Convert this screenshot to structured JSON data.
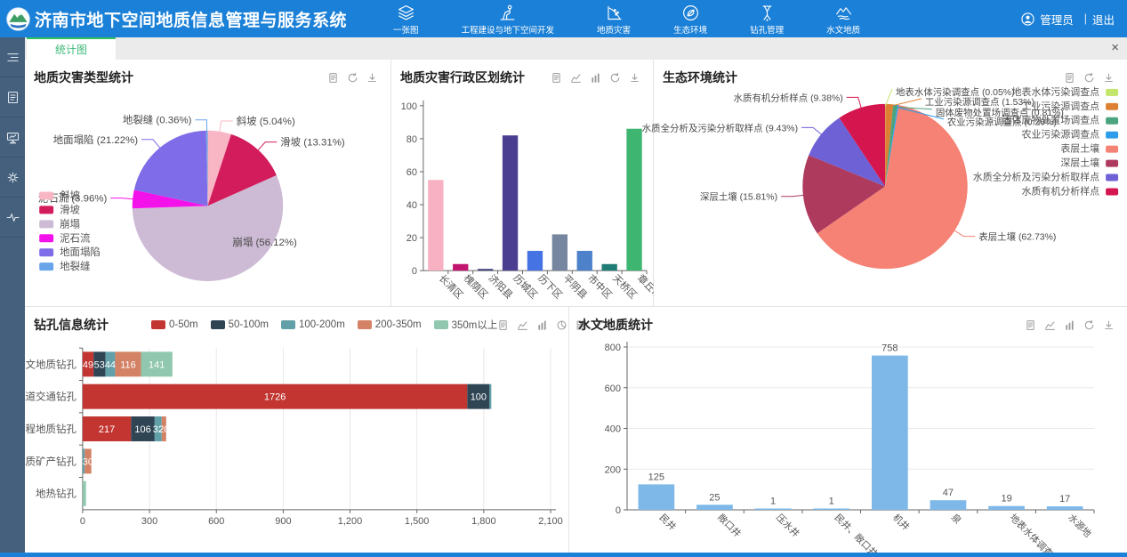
{
  "header": {
    "title": "济南市地下空间地质信息管理与服务系统",
    "nav": [
      {
        "label": "一张图",
        "icon": "layers-icon"
      },
      {
        "label": "工程建设与地下空间开发",
        "icon": "construction-icon"
      },
      {
        "label": "地质灾害",
        "icon": "landslide-icon"
      },
      {
        "label": "生态环境",
        "icon": "ecology-icon"
      },
      {
        "label": "钻孔管理",
        "icon": "drill-icon"
      },
      {
        "label": "水文地质",
        "icon": "hydrogeology-icon"
      }
    ],
    "user": {
      "name": "管理员",
      "divider": "|",
      "logout": "退出"
    }
  },
  "sidebar": {
    "items": [
      {
        "icon": "menu-icon"
      },
      {
        "icon": "document-panel-icon"
      },
      {
        "icon": "presentation-icon"
      },
      {
        "icon": "gear-icon"
      },
      {
        "icon": "activity-icon"
      }
    ]
  },
  "tabs": {
    "active": "统计图",
    "close_label": "×"
  },
  "chart_data": [
    {
      "id": "disaster-type",
      "type": "pie",
      "title": "地质灾害类型统计",
      "labels": [
        "斜坡",
        "滑坡",
        "崩塌",
        "泥石流",
        "地面塌陷",
        "地裂缝"
      ],
      "values": [
        5.04,
        13.31,
        56.12,
        3.96,
        21.22,
        0.36
      ],
      "unit": "%",
      "colors": [
        "#f8b6c5",
        "#d31c5c",
        "#cdbad4",
        "#f312e9",
        "#7e6ce8",
        "#68a4ea"
      ],
      "legend_position": "left",
      "toolbar": [
        "document-icon",
        "refresh-icon",
        "download-icon"
      ]
    },
    {
      "id": "disaster-region",
      "type": "bar",
      "title": "地质灾害行政区划统计",
      "categories": [
        "长清区",
        "槐荫区",
        "济阳县",
        "历城区",
        "历下区",
        "平阴县",
        "市中区",
        "天桥区",
        "章丘市"
      ],
      "values": [
        55,
        4,
        1,
        82,
        12,
        22,
        12,
        4,
        86
      ],
      "ylim": [
        0,
        100
      ],
      "yticks": [
        0,
        20,
        40,
        60,
        80,
        100
      ],
      "colors": [
        "#f8b1c3",
        "#c2156f",
        "#3c3f78",
        "#4a3e90",
        "#4673e3",
        "#76869e",
        "#4d82cb",
        "#207d76",
        "#3eb571"
      ],
      "toolbar": [
        "document-icon",
        "line-chart-icon",
        "bar-chart-icon",
        "refresh-icon",
        "download-icon"
      ]
    },
    {
      "id": "ecology",
      "type": "pie",
      "title": "生态环境统计",
      "labels": [
        "地表水体污染调查点",
        "工业污染源调查点",
        "固体废物处置场调查点",
        "农业污染源调查点",
        "表层土壤",
        "深层土壤",
        "水质全分析及污染分析取样点",
        "水质有机分析样点"
      ],
      "values": [
        0.05,
        1.53,
        0.81,
        0.26,
        62.73,
        15.81,
        9.43,
        9.38
      ],
      "unit": "%",
      "colors": [
        "#c3e56a",
        "#dd8033",
        "#4aa47e",
        "#2d9ceb",
        "#f58274",
        "#ae3a5e",
        "#6e61d5",
        "#d5164e"
      ],
      "legend_position": "right",
      "toolbar": [
        "document-icon",
        "refresh-icon",
        "download-icon"
      ]
    },
    {
      "id": "borehole",
      "type": "hbar-stacked",
      "title": "钻孔信息统计",
      "categories": [
        "水文地质钻孔",
        "轨道交通钻孔",
        "工程地质钻孔",
        "地质矿产钻孔",
        "地热钻孔"
      ],
      "series": [
        {
          "name": "0-50m",
          "color": "#c23531",
          "values": [
            49,
            1726,
            217,
            0,
            0
          ]
        },
        {
          "name": "50-100m",
          "color": "#2f4554",
          "values": [
            53,
            100,
            106,
            0,
            0
          ]
        },
        {
          "name": "100-200m",
          "color": "#61a0a8",
          "values": [
            44,
            8,
            32,
            9,
            0
          ]
        },
        {
          "name": "200-350m",
          "color": "#d48265",
          "values": [
            116,
            0,
            20,
            30,
            0
          ]
        },
        {
          "name": "350m以上",
          "color": "#91c7ae",
          "values": [
            141,
            0,
            0,
            0,
            15
          ]
        }
      ],
      "xlim": [
        0,
        2100
      ],
      "xticks": [
        0,
        300,
        600,
        900,
        1200,
        1500,
        1800,
        2100
      ],
      "toolbar": [
        "document-icon",
        "line-chart-icon",
        "bar-chart-icon",
        "pie-chart-icon",
        "grid-view-icon",
        "refresh-icon",
        "download-icon"
      ]
    },
    {
      "id": "hydrogeology",
      "type": "bar",
      "title": "水文地质统计",
      "categories": [
        "民井",
        "敞口井",
        "压水井",
        "民井、敞口井",
        "机井",
        "泉",
        "地表水体调查点",
        "水源地"
      ],
      "values": [
        125,
        25,
        1,
        1,
        758,
        47,
        19,
        17
      ],
      "ylim": [
        0,
        800
      ],
      "yticks": [
        0,
        200,
        400,
        600,
        800
      ],
      "color": "#7db8e8",
      "show_labels": true,
      "toolbar": [
        "document-icon",
        "line-chart-icon",
        "bar-chart-icon",
        "refresh-icon",
        "download-icon"
      ]
    }
  ]
}
